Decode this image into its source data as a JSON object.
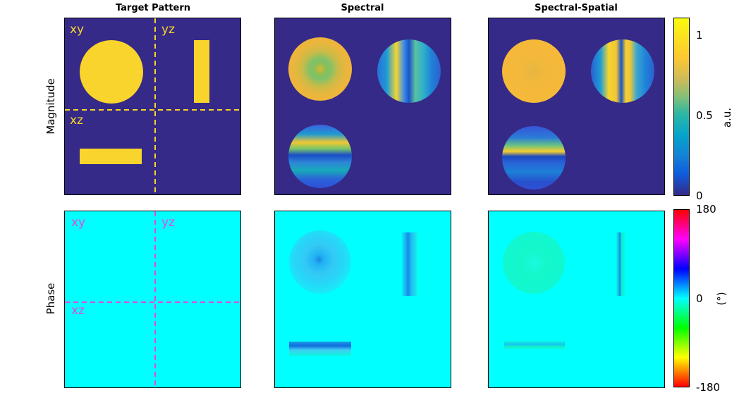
{
  "figure": {
    "columns": [
      "Target Pattern",
      "Spectral",
      "Spectral-Spatial"
    ],
    "rows": [
      "Magnitude",
      "Phase"
    ],
    "quadrant_labels": {
      "xy": "xy",
      "yz": "yz",
      "xz": "xz"
    },
    "magnitude_colorbar": {
      "ticks": [
        "0",
        "0.5",
        "1"
      ],
      "unit": "a.u."
    },
    "phase_colorbar": {
      "ticks": [
        "-180",
        "0",
        "180"
      ],
      "unit": "(°)"
    },
    "colors": {
      "background_dark": "#352a87",
      "yellow": "#f9d42c",
      "magenta": "#e04be0",
      "cyan": "#00ffff"
    }
  }
}
